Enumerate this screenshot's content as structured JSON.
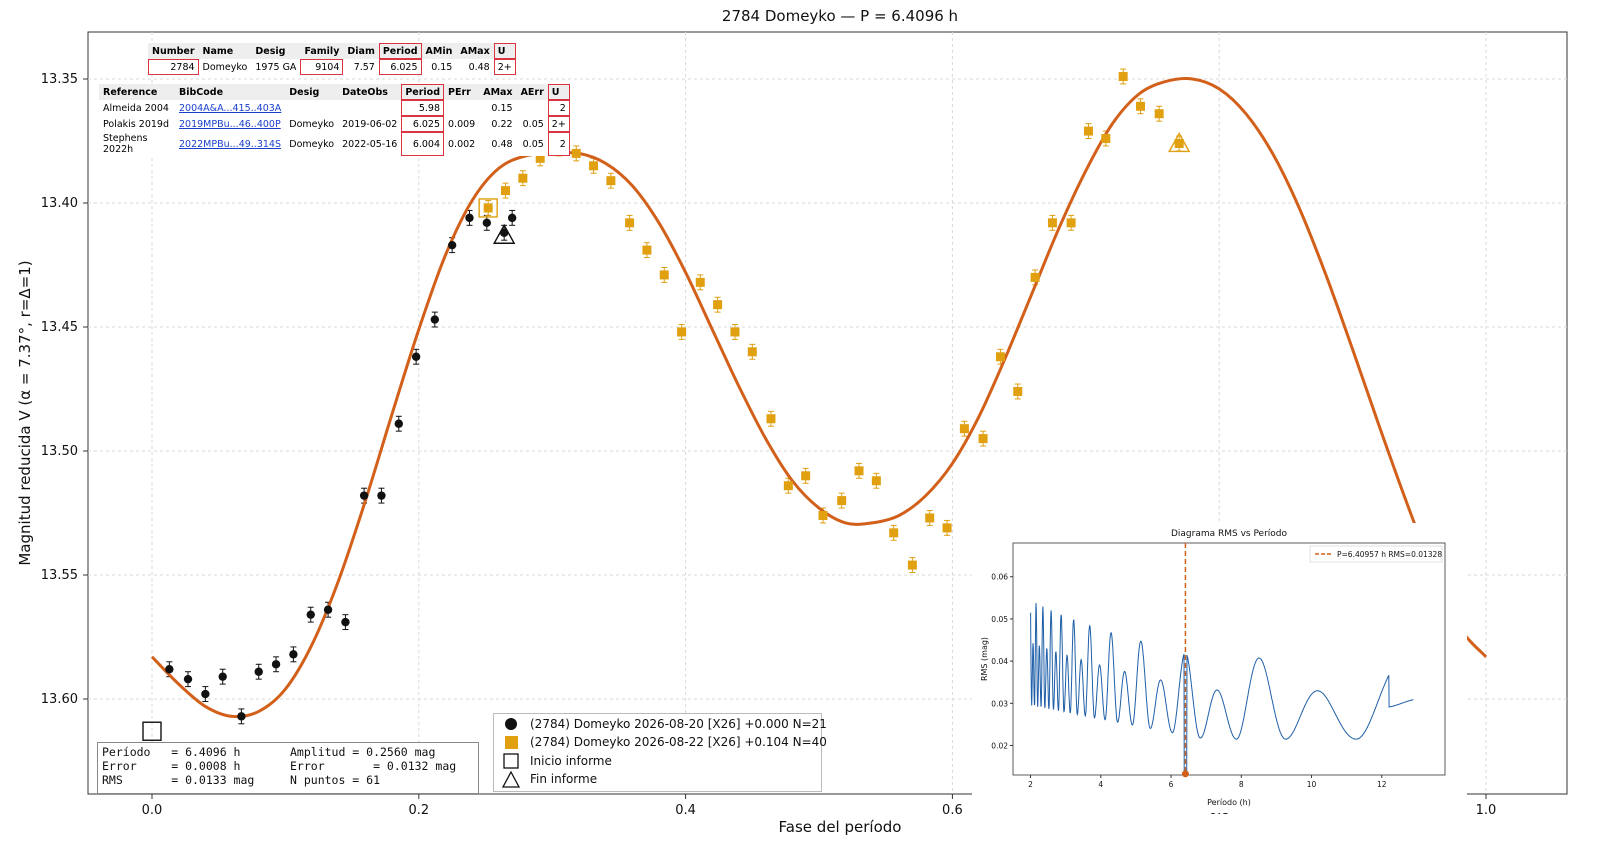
{
  "colors": {
    "fit": "#d2601a",
    "night1": "#111111",
    "night2": "#e0a010",
    "inset_line": "#1f5fa8",
    "highlight": "#d9343f"
  },
  "main_title": "2784 Domeyko — P = 6.4096 h",
  "xlabel": "Fase del período",
  "ylabel": "Magnitud reducida V  (α = 7.37°, r=Δ=1)",
  "x_ticks": [
    "0.0",
    "0.2",
    "0.4",
    "0.6",
    "0.8",
    "1.0"
  ],
  "y_ticks": [
    "13.35",
    "13.40",
    "13.45",
    "13.50",
    "13.55",
    "13.60"
  ],
  "legend": {
    "series1": "(2784) Domeyko 2026-08-20 [X26] +0.000 N=21",
    "series2": "(2784) Domeyko 2026-08-22 [X26] +0.104 N=40",
    "start": "Inicio informe",
    "end": "Fin informe"
  },
  "stats": {
    "period": "Período   = 6.4096 h",
    "error": "Error     = 0.0008 h",
    "rms": "RMS       = 0.0133 mag",
    "amplitude": "Amplitud = 0.2560 mag",
    "amp_error": "Error       = 0.0132 mag",
    "npoints": "N puntos = 61"
  },
  "lcdb_summary": {
    "headers": [
      "Number",
      "Name",
      "Desig",
      "Family",
      "Diam",
      "Period",
      "AMin",
      "AMax",
      "U"
    ],
    "row": [
      "2784",
      "Domeyko",
      "1975 GA",
      "9104",
      "7.57",
      "6.025",
      "0.15",
      "0.48",
      "2+"
    ]
  },
  "lcdb_refs": {
    "headers": [
      "Reference",
      "BibCode",
      "Desig",
      "DateObs",
      "Period",
      "PErr",
      "AMax",
      "AErr",
      "U"
    ],
    "rows": [
      [
        "Almeida 2004",
        "2004A&A...415..403A",
        "",
        "",
        "5.98",
        "",
        "0.15",
        "",
        "2"
      ],
      [
        "Polakis 2019d",
        "2019MPBu...46..400P",
        "Domeyko",
        "2019-06-02",
        "6.025",
        "0.009",
        "0.22",
        "0.05",
        "2+"
      ],
      [
        "Stephens 2022h",
        "2022MPBu...49..314S",
        "Domeyko",
        "2022-05-16",
        "6.004",
        "0.002",
        "0.48",
        "0.05",
        "2"
      ]
    ]
  },
  "inset": {
    "title": "Diagrama RMS vs Período",
    "legend": "P=6.40957 h   RMS=0.01328",
    "xlabel": "Período (h)",
    "ylabel": "RMS (mag)",
    "x_ticks": [
      "2",
      "4",
      "6",
      "8",
      "10",
      "12"
    ],
    "y_ticks": [
      "0.02",
      "0.03",
      "0.04",
      "0.05",
      "0.06"
    ]
  },
  "chart_data": [
    {
      "type": "scatter",
      "title": "2784 Domeyko — P = 6.4096 h",
      "xlabel": "Fase del período",
      "ylabel": "Magnitud reducida V  (α = 7.37°, r=Δ=1)",
      "xlim": [
        -0.05,
        1.05
      ],
      "ylim": [
        13.615,
        13.33
      ],
      "y_inverted": true,
      "grid": true,
      "legend_position": "bottom-center",
      "series": [
        {
          "name": "(2784) Domeyko 2026-08-20 [X26] +0.000 N=21",
          "marker": "circle",
          "points": [
            [
              0.013,
              13.588
            ],
            [
              0.027,
              13.592
            ],
            [
              0.04,
              13.598
            ],
            [
              0.053,
              13.591
            ],
            [
              0.067,
              13.607
            ],
            [
              0.08,
              13.589
            ],
            [
              0.093,
              13.586
            ],
            [
              0.106,
              13.582
            ],
            [
              0.119,
              13.566
            ],
            [
              0.132,
              13.564
            ],
            [
              0.145,
              13.569
            ],
            [
              0.159,
              13.518
            ],
            [
              0.172,
              13.518
            ],
            [
              0.185,
              13.489
            ],
            [
              0.198,
              13.462
            ],
            [
              0.212,
              13.447
            ],
            [
              0.225,
              13.417
            ],
            [
              0.238,
              13.406
            ],
            [
              0.251,
              13.408
            ],
            [
              0.264,
              13.412
            ],
            [
              0.27,
              13.406
            ]
          ],
          "yerr": 0.003
        },
        {
          "name": "(2784) Domeyko 2026-08-22 [X26] +0.104 N=40",
          "marker": "square",
          "points": [
            [
              0.252,
              13.402
            ],
            [
              0.265,
              13.395
            ],
            [
              0.278,
              13.39
            ],
            [
              0.291,
              13.382
            ],
            [
              0.305,
              13.378
            ],
            [
              0.318,
              13.38
            ],
            [
              0.331,
              13.385
            ],
            [
              0.344,
              13.391
            ],
            [
              0.358,
              13.408
            ],
            [
              0.371,
              13.419
            ],
            [
              0.384,
              13.429
            ],
            [
              0.397,
              13.452
            ],
            [
              0.411,
              13.432
            ],
            [
              0.424,
              13.441
            ],
            [
              0.437,
              13.452
            ],
            [
              0.45,
              13.46
            ],
            [
              0.464,
              13.487
            ],
            [
              0.477,
              13.514
            ],
            [
              0.49,
              13.51
            ],
            [
              0.503,
              13.526
            ],
            [
              0.517,
              13.52
            ],
            [
              0.53,
              13.508
            ],
            [
              0.543,
              13.512
            ],
            [
              0.556,
              13.533
            ],
            [
              0.57,
              13.546
            ],
            [
              0.583,
              13.527
            ],
            [
              0.596,
              13.531
            ],
            [
              0.609,
              13.491
            ],
            [
              0.623,
              13.495
            ],
            [
              0.636,
              13.462
            ],
            [
              0.649,
              13.476
            ],
            [
              0.662,
              13.43
            ],
            [
              0.675,
              13.408
            ],
            [
              0.689,
              13.408
            ],
            [
              0.702,
              13.371
            ],
            [
              0.715,
              13.374
            ],
            [
              0.728,
              13.349
            ],
            [
              0.741,
              13.361
            ],
            [
              0.755,
              13.364
            ],
            [
              0.77,
              13.376
            ]
          ],
          "yerr": 0.003
        },
        {
          "name": "Fourier fit",
          "type": "line",
          "mean": 13.4795,
          "terms": [
            [
              0.0703,
              0.0
            ],
            [
              0.0582,
              -2.12
            ],
            [
              0.0118,
              0.0
            ],
            [
              0.0,
              0.0
            ]
          ],
          "note": "mag(phi) = mean + sum_k a_k*cos(2*pi*k*(phi - p_k)) sampled; key features: max 13.380 at 0.31, min 13.529 at 0.54, max 13.351 at 0.78, min 13.607 at 0.065"
        }
      ],
      "fit_samples": [
        [
          0.0,
          13.583
        ],
        [
          0.02,
          13.594
        ],
        [
          0.04,
          13.603
        ],
        [
          0.06,
          13.607
        ],
        [
          0.08,
          13.605
        ],
        [
          0.1,
          13.596
        ],
        [
          0.12,
          13.578
        ],
        [
          0.14,
          13.552
        ],
        [
          0.16,
          13.52
        ],
        [
          0.18,
          13.485
        ],
        [
          0.2,
          13.451
        ],
        [
          0.22,
          13.421
        ],
        [
          0.24,
          13.399
        ],
        [
          0.26,
          13.386
        ],
        [
          0.28,
          13.381
        ],
        [
          0.3,
          13.38
        ],
        [
          0.32,
          13.38
        ],
        [
          0.34,
          13.384
        ],
        [
          0.36,
          13.393
        ],
        [
          0.38,
          13.408
        ],
        [
          0.4,
          13.428
        ],
        [
          0.42,
          13.451
        ],
        [
          0.44,
          13.474
        ],
        [
          0.46,
          13.495
        ],
        [
          0.48,
          13.512
        ],
        [
          0.5,
          13.523
        ],
        [
          0.52,
          13.529
        ],
        [
          0.54,
          13.529
        ],
        [
          0.56,
          13.526
        ],
        [
          0.58,
          13.518
        ],
        [
          0.6,
          13.505
        ],
        [
          0.62,
          13.486
        ],
        [
          0.64,
          13.462
        ],
        [
          0.66,
          13.436
        ],
        [
          0.68,
          13.41
        ],
        [
          0.7,
          13.387
        ],
        [
          0.72,
          13.368
        ],
        [
          0.74,
          13.356
        ],
        [
          0.76,
          13.351
        ],
        [
          0.78,
          13.35
        ],
        [
          0.8,
          13.354
        ],
        [
          0.82,
          13.364
        ],
        [
          0.84,
          13.38
        ],
        [
          0.86,
          13.402
        ],
        [
          0.88,
          13.429
        ],
        [
          0.9,
          13.459
        ],
        [
          0.92,
          13.49
        ],
        [
          0.94,
          13.52
        ],
        [
          0.96,
          13.548
        ],
        [
          0.98,
          13.571
        ],
        [
          1.0,
          13.583
        ]
      ],
      "markers": {
        "start": [
          0.0,
          13.613
        ],
        "end": [
          0.264,
          13.413
        ],
        "start2": [
          0.252,
          13.402
        ],
        "end2": [
          0.77,
          13.376
        ]
      }
    },
    {
      "type": "line",
      "title": "Diagrama RMS vs Período",
      "xlabel": "Período (h)",
      "ylabel": "RMS (mag)",
      "xlim": [
        1.5,
        13.8
      ],
      "ylim": [
        0.013,
        0.068
      ],
      "grid": false,
      "legend_position": "top-right",
      "series": [
        {
          "name": "P=6.40957 h   RMS=0.01328",
          "best_period": 6.40957,
          "best_rms": 0.01328
        }
      ]
    }
  ]
}
